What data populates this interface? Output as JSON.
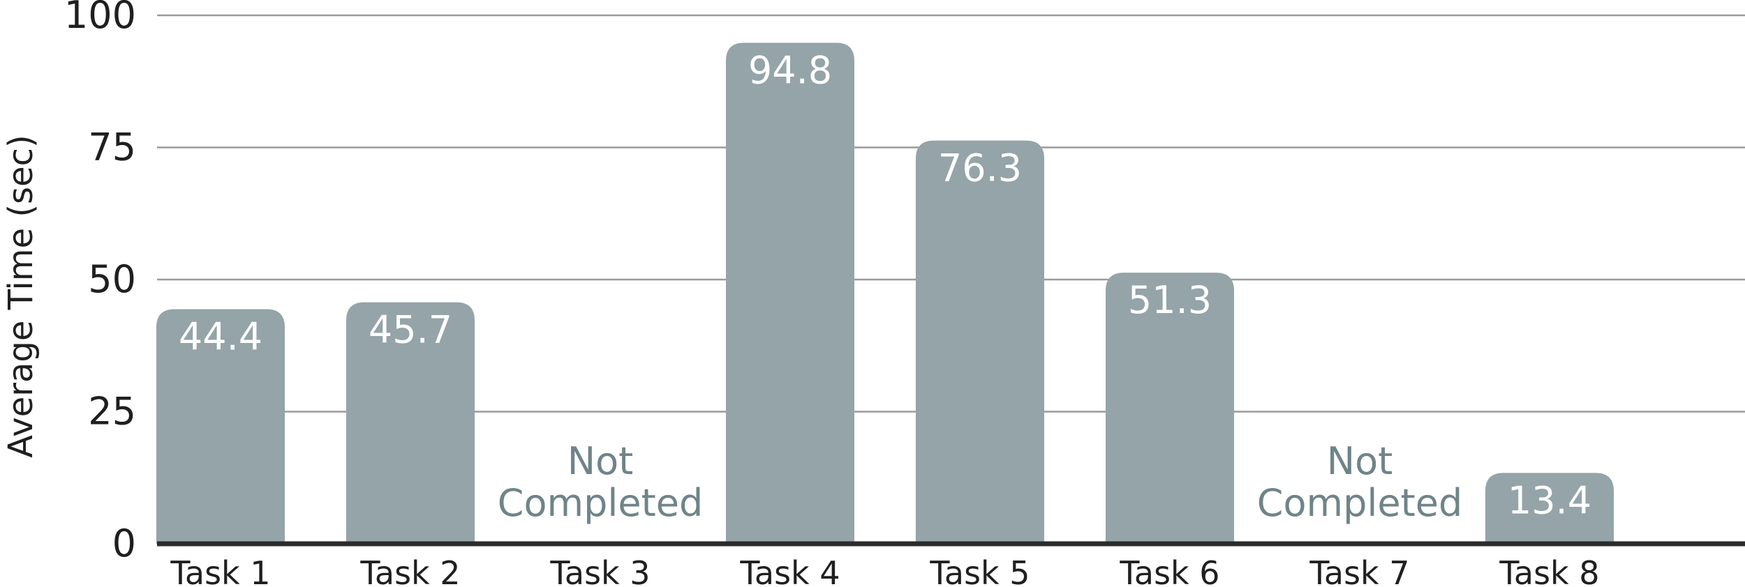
{
  "chart_data": {
    "type": "bar",
    "title": "",
    "xlabel": "",
    "ylabel": "Average Time (sec)",
    "ylim": [
      0,
      100
    ],
    "yticks": [
      "0",
      "25",
      "50",
      "75",
      "100"
    ],
    "grid": true,
    "categories": [
      "Task 1",
      "Task 2",
      "Task 3",
      "Task 4",
      "Task 5",
      "Task 6",
      "Task 7",
      "Task 8"
    ],
    "values": [
      44.4,
      45.7,
      null,
      94.8,
      76.3,
      51.3,
      null,
      13.4
    ],
    "value_labels": [
      "44.4",
      "45.7",
      "",
      "94.8",
      "76.3",
      "51.3",
      "",
      "13.4"
    ],
    "notes": [
      "",
      "",
      "Not\nCompleted",
      "",
      "",
      "",
      "Not\nCompleted",
      ""
    ],
    "colors": {
      "bar": "#94a4a8",
      "note_text": "#6f8489",
      "value_text": "#ffffff",
      "grid": "#9a9a9a",
      "axis": "#2b2b2b"
    }
  }
}
